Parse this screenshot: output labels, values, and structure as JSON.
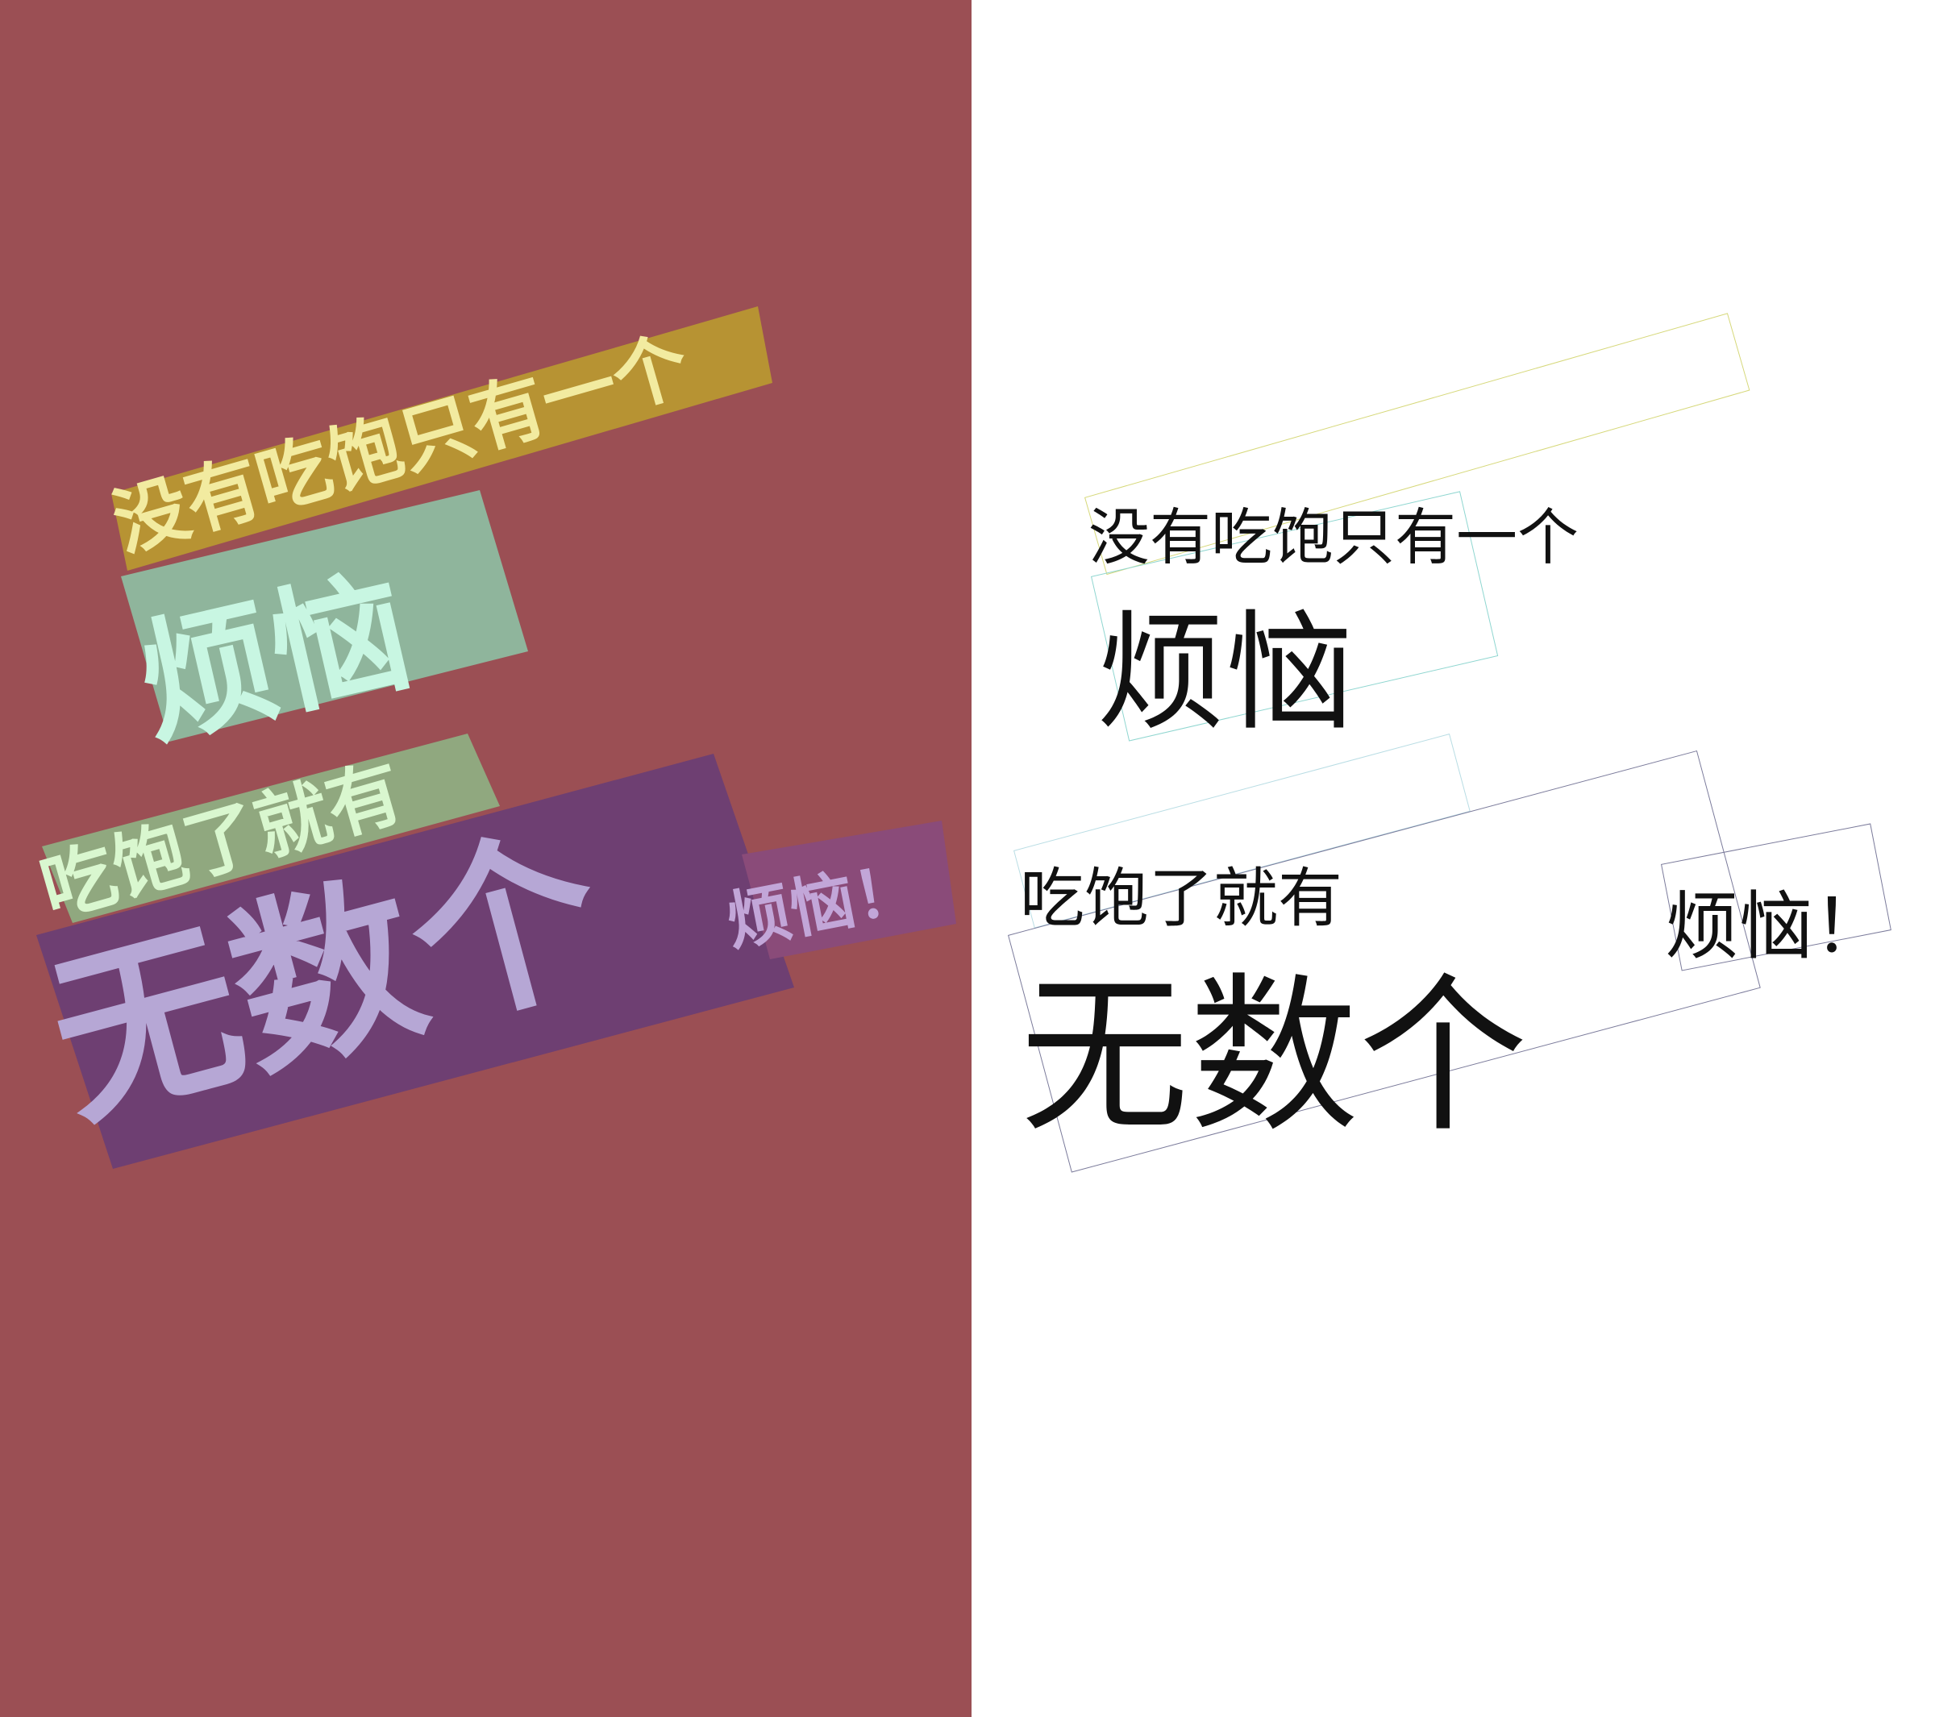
{
  "colors": {
    "poster_background": "#9b4f54",
    "line1_highlight": "#b79333",
    "line1_text": "#f2eba0",
    "line2_highlight": "#8fb59c",
    "line2_text": "#c8f6e2",
    "line3_highlight": "#90a87f",
    "line3_text": "#d9f7cf",
    "line4_highlight": "#6e3f72",
    "line4_text": "#b6a7d5",
    "line5_highlight": "#8a4b79",
    "line5_text": "#c2a6d8"
  },
  "poster": {
    "line1": "没有吃饱只有一个",
    "line2": "烦恼",
    "line3": "吃饱了就有",
    "line4": "无数个",
    "line5": "烦恼！"
  },
  "transcription": {
    "line1": "没有吃饱只有一个",
    "line2": "烦恼",
    "line3": "吃饱了就有",
    "line4": "无数个",
    "line5": "烦恼！"
  }
}
